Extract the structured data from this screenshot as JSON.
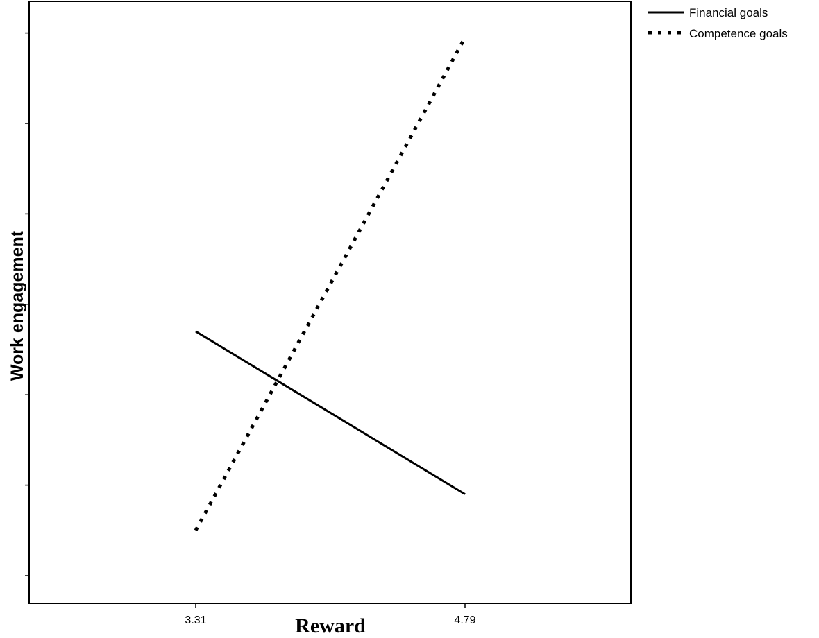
{
  "chart_data": {
    "type": "line",
    "title": "",
    "xlabel": "Reward",
    "ylabel": "Work engagement",
    "x": [
      3.31,
      4.79
    ],
    "x_tick_labels": [
      "3.31",
      "4.79"
    ],
    "series": [
      {
        "name": "Financial goals",
        "values": [
          0.54,
          0.18
        ],
        "line_style": "solid"
      },
      {
        "name": "Competence goals",
        "values": [
          0.1,
          1.19
        ],
        "line_style": "dotted"
      }
    ],
    "y_ticks": [
      0.0,
      0.2,
      0.4,
      0.6,
      0.8,
      1.0,
      1.2
    ],
    "y_tick_labels": "none",
    "grid": false,
    "legend": "top-right (outside plot)",
    "colors": {
      "line": "#000000",
      "axes": "#000000",
      "background": "#ffffff"
    }
  }
}
